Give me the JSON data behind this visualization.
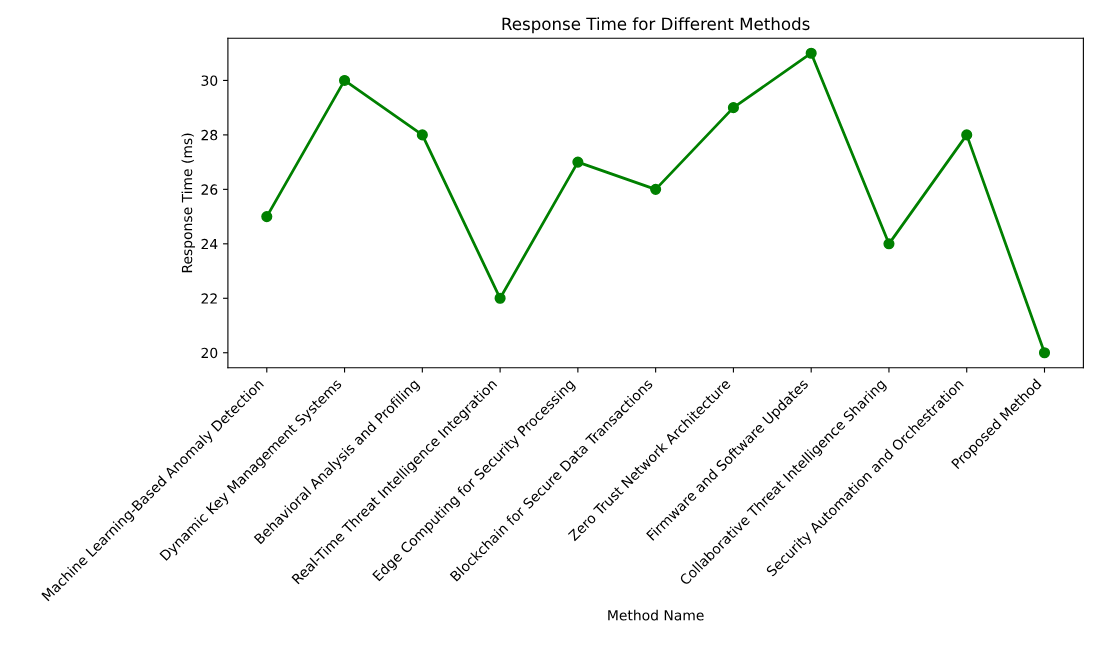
{
  "chart_data": {
    "type": "line",
    "title": "Response Time for Different Methods",
    "xlabel": "Method Name",
    "ylabel": "Response Time (ms)",
    "categories": [
      "Machine Learning-Based Anomaly Detection",
      "Dynamic Key Management Systems",
      "Behavioral Analysis and Profiling",
      "Real-Time Threat Intelligence Integration",
      "Edge Computing for Security Processing",
      "Blockchain for Secure Data Transactions",
      "Zero Trust Network Architecture",
      "Firmware and Software Updates",
      "Collaborative Threat Intelligence Sharing",
      "Security Automation and Orchestration",
      "Proposed Method"
    ],
    "series": [
      {
        "color": "#008000",
        "values": [
          25,
          30,
          28,
          22,
          27,
          26,
          29,
          31,
          24,
          28,
          20
        ]
      }
    ],
    "ylim": [
      19.45,
      31.55
    ],
    "yticks": [
      20,
      22,
      24,
      26,
      28,
      30
    ],
    "marker": "circle",
    "line_style": "solid",
    "grid": false,
    "legend": false
  }
}
